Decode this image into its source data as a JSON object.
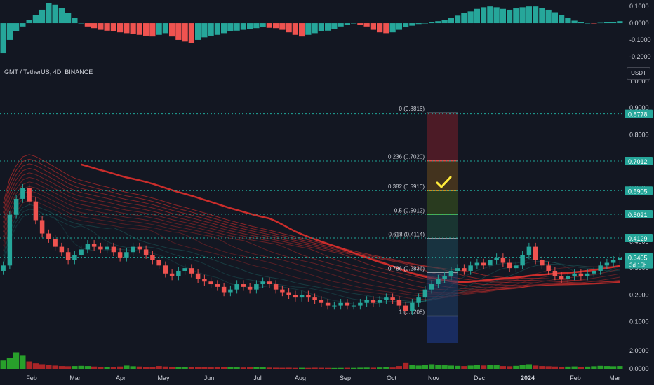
{
  "header": {
    "symbol_title": "GMT / TetherUS, 4D, BINANCE",
    "quote_chip": "USDT"
  },
  "colors": {
    "background": "#131722",
    "bull": "#26a69a",
    "bear": "#ef5350",
    "grid_dotted": "#1fa89a",
    "fib_green": "#4caf50",
    "fib_orange": "#f9a825",
    "fib_red": "#ef5350",
    "fib_gray": "#9598a1",
    "ema_red": "#e0302c",
    "checkmark": "#ffeb3b"
  },
  "chart_data": [
    {
      "type": "bar",
      "title": "",
      "ylim": [
        -0.23,
        0.13
      ],
      "axis_ticks": [
        "0.1000",
        "0.0000",
        "-0.1000",
        "-0.2000"
      ],
      "axis_tick_values": [
        0.1,
        0.0,
        -0.1,
        -0.2
      ],
      "values": [
        -0.18,
        -0.1,
        -0.05,
        -0.02,
        0.02,
        0.05,
        0.08,
        0.12,
        0.11,
        0.09,
        0.06,
        0.03,
        0.0,
        -0.02,
        -0.03,
        -0.04,
        -0.045,
        -0.05,
        -0.055,
        -0.06,
        -0.065,
        -0.07,
        -0.075,
        -0.08,
        -0.07,
        -0.06,
        -0.08,
        -0.1,
        -0.11,
        -0.12,
        -0.1,
        -0.085,
        -0.075,
        -0.07,
        -0.06,
        -0.05,
        -0.045,
        -0.04,
        -0.035,
        -0.03,
        -0.025,
        -0.028,
        -0.03,
        -0.04,
        -0.055,
        -0.07,
        -0.08,
        -0.07,
        -0.06,
        -0.05,
        -0.045,
        -0.035,
        -0.02,
        -0.01,
        0.0,
        -0.01,
        -0.02,
        -0.04,
        -0.055,
        -0.06,
        -0.055,
        -0.04,
        -0.025,
        -0.015,
        -0.005,
        0.0,
        0.008,
        0.012,
        0.018,
        0.03,
        0.045,
        0.06,
        0.07,
        0.085,
        0.095,
        0.1,
        0.095,
        0.085,
        0.08,
        0.088,
        0.095,
        0.1,
        0.1,
        0.09,
        0.08,
        0.065,
        0.05,
        0.03,
        0.015,
        0.005,
        0.0,
        -0.002,
        0.002,
        0.005,
        0.008,
        0.012
      ]
    },
    {
      "type": "candlestick",
      "title": "GMT / TetherUS, 4D, BINANCE",
      "ylim": [
        0.02,
        1.0
      ],
      "x_labels": [
        "Feb",
        "Mar",
        "Apr",
        "May",
        "Jun",
        "Jul",
        "Aug",
        "Sep",
        "Oct",
        "Nov",
        "Dec",
        "2024",
        "Feb",
        "Mar"
      ],
      "axis_ticks": [
        "1.0000",
        "0.9000",
        "0.8000",
        "0.7000",
        "0.6000",
        "0.5000",
        "0.4000",
        "0.3000",
        "0.2000",
        "0.1000"
      ],
      "axis_tick_values": [
        1.0,
        0.9,
        0.8,
        0.7,
        0.6,
        0.5,
        0.4,
        0.3,
        0.2,
        0.1
      ],
      "price_badges": [
        {
          "label": "0.8778",
          "value": 0.8778
        },
        {
          "label": "0.7012",
          "value": 0.7012
        },
        {
          "label": "0.5905",
          "value": 0.5905
        },
        {
          "label": "0.5021",
          "value": 0.5021
        },
        {
          "label": "0.4129",
          "value": 0.4129
        },
        {
          "label": "0.3405",
          "value": 0.3405,
          "sub": "3d 15h"
        }
      ],
      "fib_levels": [
        {
          "label": "0 (0.8816)",
          "value": 0.8816
        },
        {
          "label": "0.236 (0.7020)",
          "value": 0.702
        },
        {
          "label": "0.382 (0.5910)",
          "value": 0.591
        },
        {
          "label": "0.5 (0.5012)",
          "value": 0.5012
        },
        {
          "label": "0.618 (0.4114)",
          "value": 0.4114
        },
        {
          "label": "0.786 (0.2836)",
          "value": 0.2836
        },
        {
          "label": "1 (0.1208)",
          "value": 0.1208
        }
      ],
      "closes": [
        0.31,
        0.5,
        0.56,
        0.6,
        0.55,
        0.48,
        0.43,
        0.41,
        0.38,
        0.36,
        0.33,
        0.35,
        0.37,
        0.39,
        0.38,
        0.37,
        0.38,
        0.36,
        0.34,
        0.36,
        0.38,
        0.37,
        0.35,
        0.33,
        0.31,
        0.28,
        0.27,
        0.29,
        0.3,
        0.28,
        0.26,
        0.25,
        0.24,
        0.23,
        0.21,
        0.22,
        0.24,
        0.23,
        0.22,
        0.24,
        0.25,
        0.24,
        0.22,
        0.21,
        0.2,
        0.19,
        0.2,
        0.19,
        0.18,
        0.17,
        0.16,
        0.16,
        0.17,
        0.16,
        0.16,
        0.17,
        0.18,
        0.17,
        0.18,
        0.19,
        0.18,
        0.16,
        0.14,
        0.17,
        0.19,
        0.22,
        0.24,
        0.26,
        0.27,
        0.29,
        0.3,
        0.29,
        0.31,
        0.32,
        0.31,
        0.33,
        0.34,
        0.32,
        0.3,
        0.31,
        0.35,
        0.38,
        0.33,
        0.31,
        0.29,
        0.27,
        0.26,
        0.27,
        0.28,
        0.27,
        0.28,
        0.29,
        0.31,
        0.32,
        0.33,
        0.34
      ]
    },
    {
      "type": "bar",
      "title": "",
      "ylim": [
        0,
        2.6
      ],
      "axis_ticks": [
        "2.0000",
        "0.0000"
      ],
      "axis_tick_values": [
        2.0,
        0.0
      ],
      "values": [
        0.9,
        1.2,
        1.8,
        1.5,
        0.8,
        0.6,
        0.5,
        0.4,
        0.35,
        0.3,
        0.28,
        0.3,
        0.32,
        0.3,
        0.25,
        0.22,
        0.2,
        0.22,
        0.25,
        0.35,
        0.28,
        0.25,
        0.22,
        0.2,
        0.3,
        0.25,
        0.22,
        0.2,
        0.18,
        0.2,
        0.18,
        0.16,
        0.15,
        0.18,
        0.17,
        0.16,
        0.15,
        0.14,
        0.15,
        0.16,
        0.15,
        0.13,
        0.12,
        0.11,
        0.12,
        0.1,
        0.11,
        0.1,
        0.12,
        0.11,
        0.1,
        0.09,
        0.1,
        0.11,
        0.1,
        0.12,
        0.13,
        0.12,
        0.14,
        0.16,
        0.14,
        0.3,
        0.7,
        0.4,
        0.35,
        0.45,
        0.5,
        0.42,
        0.38,
        0.35,
        0.32,
        0.3,
        0.35,
        0.4,
        0.36,
        0.45,
        0.38,
        0.3,
        0.28,
        0.32,
        0.4,
        0.5,
        0.35,
        0.3,
        0.28,
        0.25,
        0.22,
        0.24,
        0.26,
        0.22,
        0.24,
        0.28,
        0.32,
        0.3,
        0.28,
        0.3
      ]
    }
  ]
}
